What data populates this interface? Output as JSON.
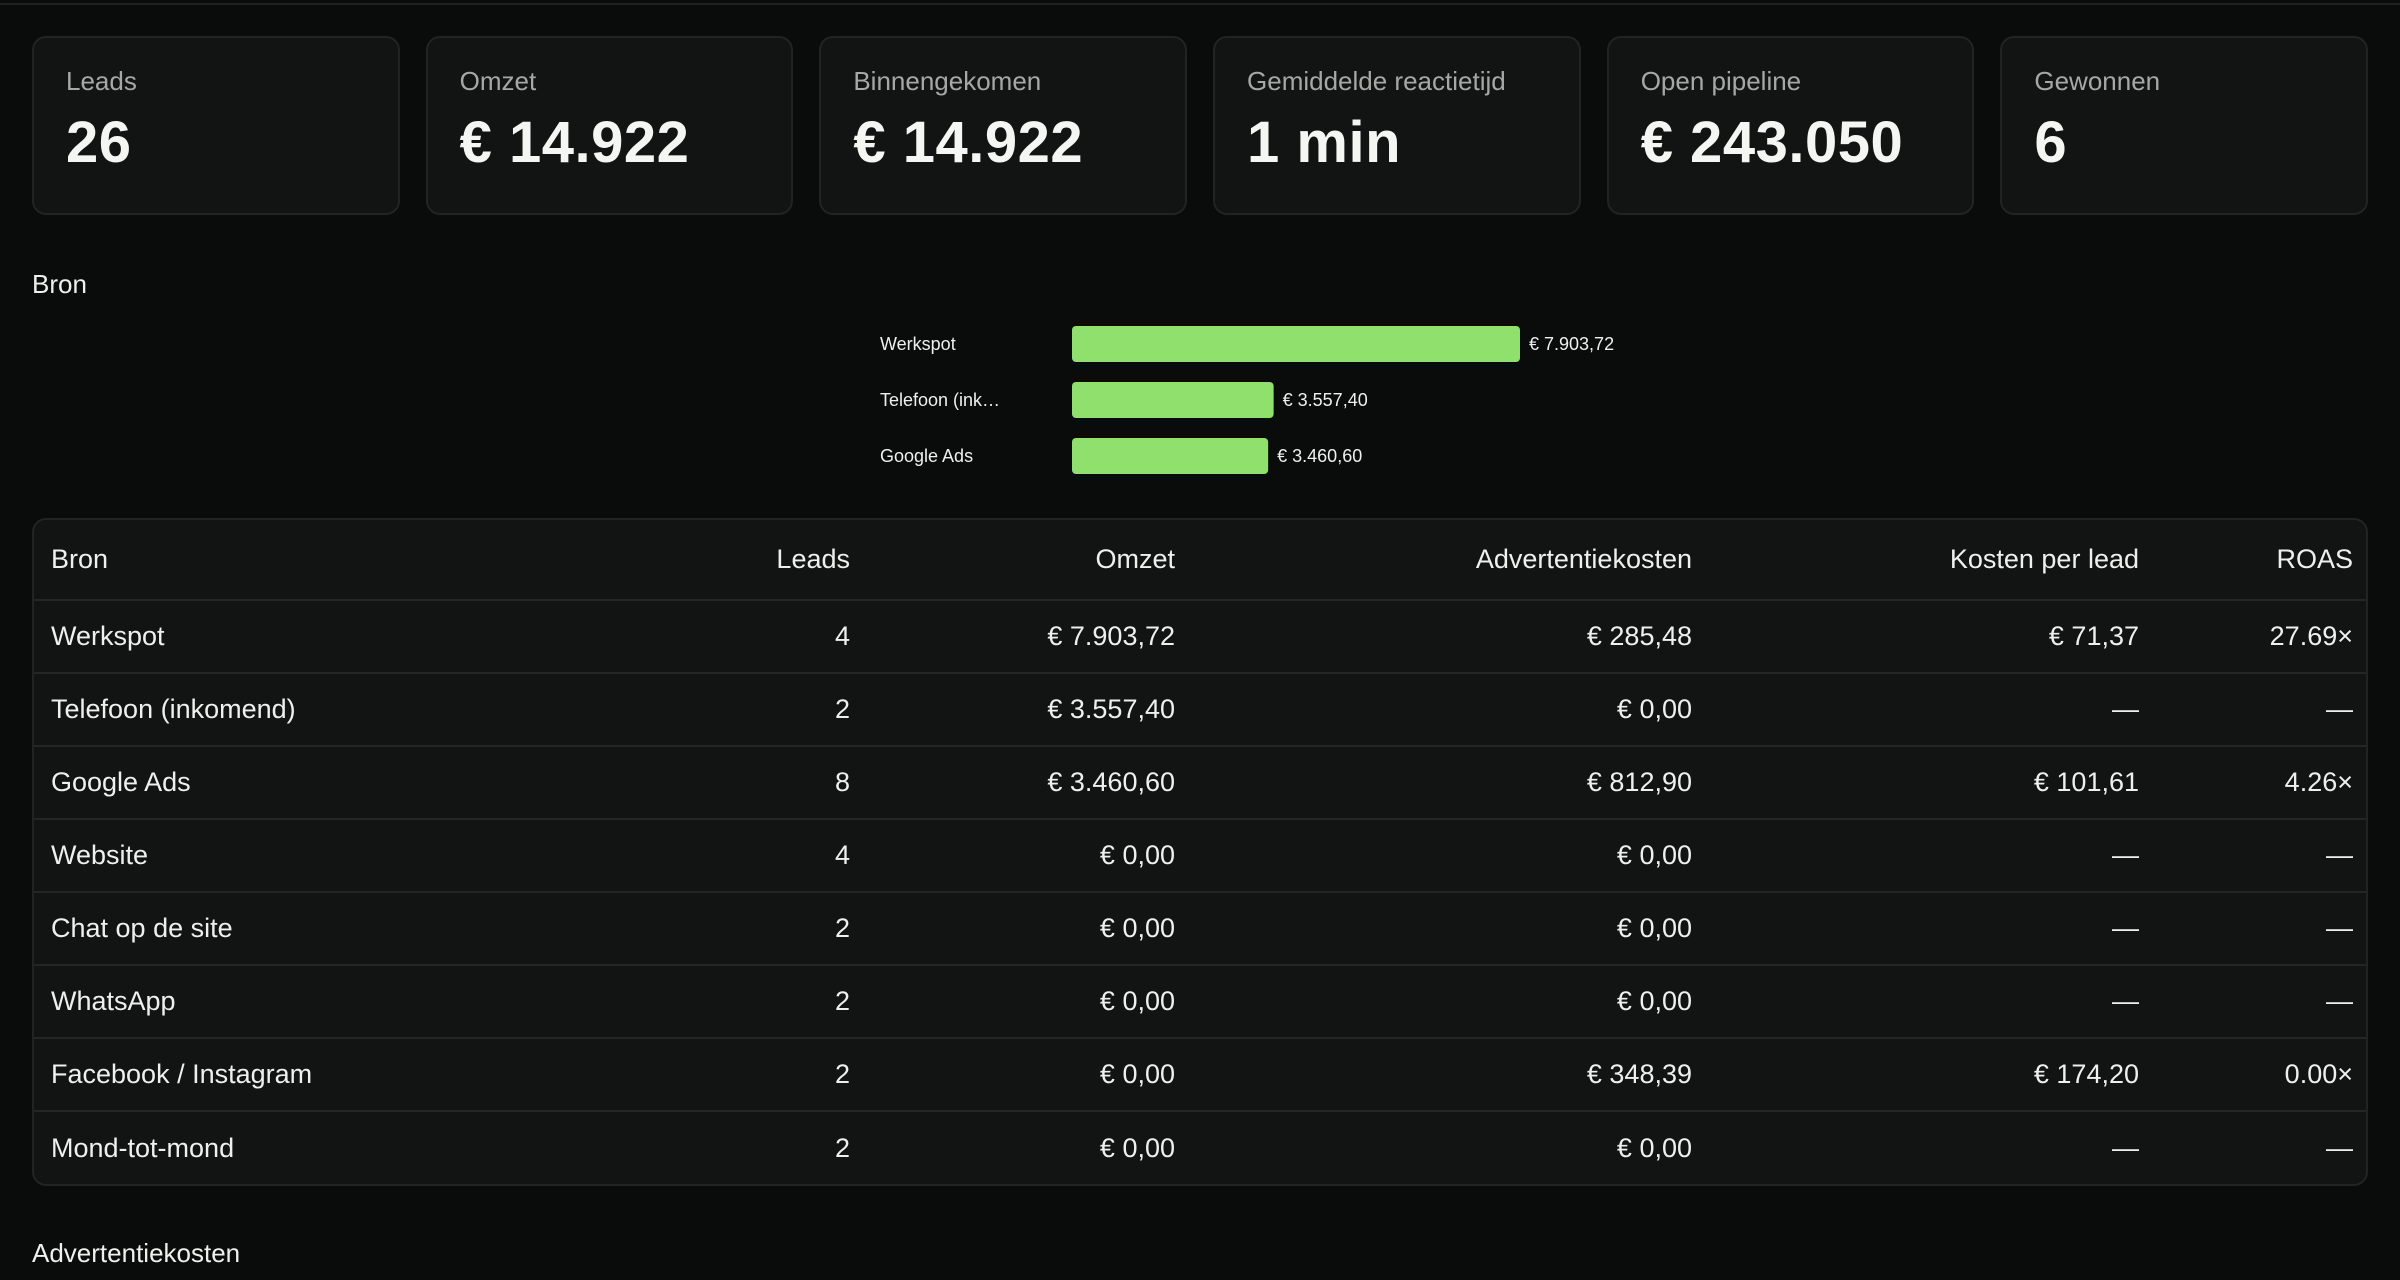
{
  "kpis": [
    {
      "label": "Leads",
      "value": "26"
    },
    {
      "label": "Omzet",
      "value": "€ 14.922"
    },
    {
      "label": "Binnengekomen",
      "value": "€ 14.922"
    },
    {
      "label": "Gemiddelde reactietijd",
      "value": "1 min"
    },
    {
      "label": "Open pipeline",
      "value": "€ 243.050"
    },
    {
      "label": "Gewonnen",
      "value": "6"
    }
  ],
  "source_section": {
    "title": "Bron"
  },
  "chart_data": {
    "type": "bar",
    "orientation": "horizontal",
    "categories": [
      "Werkspot",
      "Telefoon (ink…",
      "Google Ads"
    ],
    "values": [
      7903.72,
      3557.4,
      3460.6
    ],
    "value_labels": [
      "€ 7.903,72",
      "€ 3.557,40",
      "€ 3.460,60"
    ],
    "bar_color": "#8fe06c"
  },
  "table": {
    "headers": [
      "Bron",
      "Leads",
      "Omzet",
      "Advertentiekosten",
      "Kosten per lead",
      "ROAS"
    ],
    "rows": [
      [
        "Werkspot",
        "4",
        "€ 7.903,72",
        "€ 285,48",
        "€ 71,37",
        "27.69×"
      ],
      [
        "Telefoon (inkomend)",
        "2",
        "€ 3.557,40",
        "€ 0,00",
        "—",
        "—"
      ],
      [
        "Google Ads",
        "8",
        "€ 3.460,60",
        "€ 812,90",
        "€ 101,61",
        "4.26×"
      ],
      [
        "Website",
        "4",
        "€ 0,00",
        "€ 0,00",
        "—",
        "—"
      ],
      [
        "Chat op de site",
        "2",
        "€ 0,00",
        "€ 0,00",
        "—",
        "—"
      ],
      [
        "WhatsApp",
        "2",
        "€ 0,00",
        "€ 0,00",
        "—",
        "—"
      ],
      [
        "Facebook / Instagram",
        "2",
        "€ 0,00",
        "€ 348,39",
        "€ 174,20",
        "0.00×"
      ],
      [
        "Mond-tot-mond",
        "2",
        "€ 0,00",
        "€ 0,00",
        "—",
        "—"
      ]
    ]
  },
  "ad_costs_section": {
    "title": "Advertentiekosten"
  },
  "colors": {
    "background": "#0a0b0b",
    "card": "#121414",
    "border": "#212424",
    "accent": "#8fe06c"
  }
}
